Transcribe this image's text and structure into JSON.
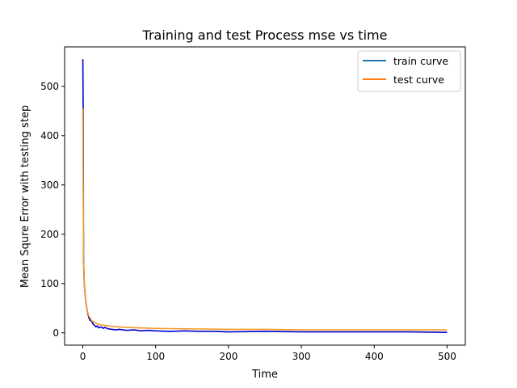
{
  "chart_data": {
    "type": "line",
    "title": "Training and test Process mse vs time",
    "xlabel": "Time",
    "ylabel": "Mean Squre Error with testing step",
    "xlim": [
      -25,
      525
    ],
    "ylim": [
      -25,
      580
    ],
    "xticks": [
      0,
      100,
      200,
      300,
      400,
      500
    ],
    "yticks": [
      0,
      100,
      200,
      300,
      400,
      500
    ],
    "grid": false,
    "legend_position": "top-right",
    "series": [
      {
        "name": "train curve",
        "legend_color": "#1f77b4",
        "plot_color": "#0000cc",
        "x": [
          0,
          0.5,
          1,
          2,
          3,
          4,
          5,
          6,
          7,
          8,
          9,
          10,
          12,
          14,
          16,
          18,
          20,
          22,
          25,
          28,
          30,
          35,
          40,
          45,
          50,
          60,
          70,
          80,
          90,
          100,
          120,
          140,
          160,
          180,
          200,
          250,
          300,
          350,
          400,
          450,
          500
        ],
        "values": [
          555,
          450,
          150,
          100,
          80,
          65,
          55,
          45,
          38,
          32,
          28,
          25,
          24,
          18,
          15,
          12,
          14,
          10,
          12,
          9,
          11,
          8,
          7,
          6,
          7,
          5,
          6,
          4,
          5,
          4,
          3,
          4,
          3,
          3,
          2,
          3,
          2,
          2,
          2,
          2,
          1
        ]
      },
      {
        "name": "test curve",
        "legend_color": "#ff7f0e",
        "plot_color": "#f59a23",
        "x": [
          0,
          0.5,
          1,
          2,
          3,
          4,
          5,
          6,
          8,
          10,
          12,
          15,
          20,
          25,
          30,
          40,
          50,
          60,
          80,
          100,
          150,
          200,
          250,
          300,
          350,
          400,
          450,
          500
        ],
        "values": [
          455,
          300,
          150,
          100,
          80,
          65,
          55,
          45,
          35,
          30,
          25,
          22,
          18,
          16,
          15,
          13,
          12,
          11,
          10,
          9,
          8,
          7,
          7,
          6,
          6,
          6,
          6,
          6
        ]
      }
    ]
  }
}
